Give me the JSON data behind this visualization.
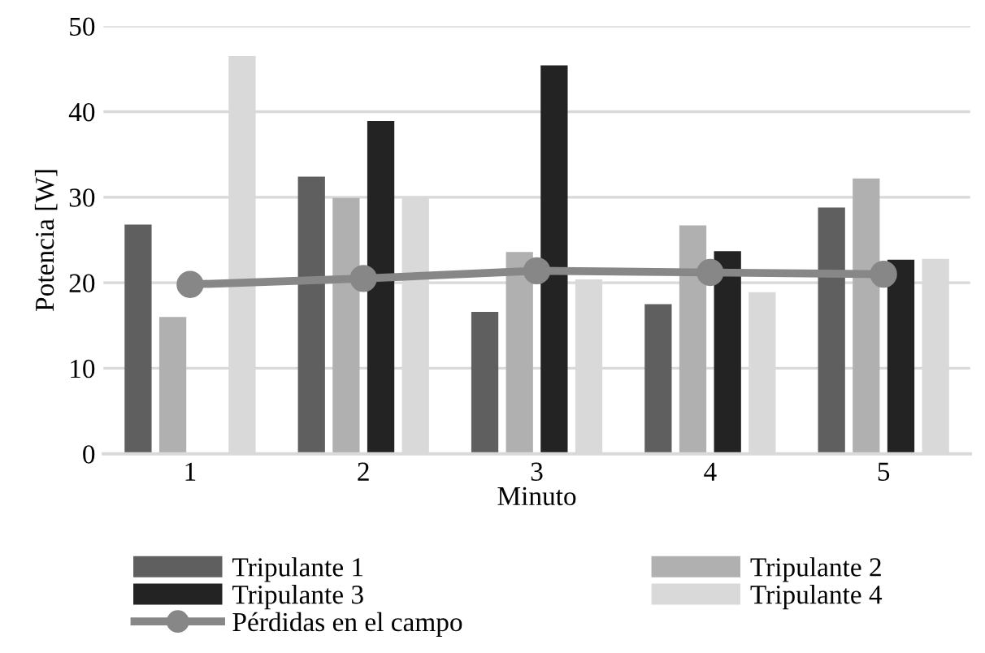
{
  "chart_data": {
    "type": "bar",
    "xlabel": "Minuto",
    "ylabel": "Potencia [W]",
    "categories": [
      "1",
      "2",
      "3",
      "4",
      "5"
    ],
    "series": [
      {
        "name": "Tripulante 1",
        "color": "#5f5f5f",
        "values": [
          26.8,
          32.4,
          16.6,
          17.5,
          28.8
        ]
      },
      {
        "name": "Tripulante 2",
        "color": "#b0b0b0",
        "values": [
          16.0,
          29.9,
          23.6,
          26.7,
          32.2
        ]
      },
      {
        "name": "Tripulante 3",
        "color": "#232323",
        "values": [
          null,
          38.9,
          45.4,
          23.7,
          22.7
        ]
      },
      {
        "name": "Tripulante 4",
        "color": "#d9d9d9",
        "values": [
          46.5,
          30.1,
          20.4,
          18.9,
          22.8
        ]
      },
      {
        "name": "Pérdidas en el campo",
        "type": "line",
        "color": "#878787",
        "marker": "circle",
        "values": [
          19.8,
          20.5,
          21.4,
          21.2,
          21.0
        ]
      }
    ],
    "ylim": [
      0,
      50
    ],
    "yticks": [
      0,
      10,
      20,
      30,
      40,
      50
    ],
    "grid": "y",
    "legend": "bottom"
  }
}
